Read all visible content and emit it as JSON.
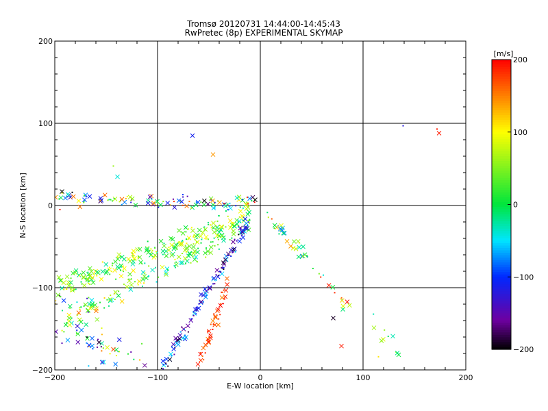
{
  "chart_data": {
    "type": "scatter",
    "title": "Tromsø 20120731 14:44:00-14:45:43",
    "subtitle": "RwPretec (8p) EXPERIMENTAL SKYMAP",
    "xlabel": "E-W location [km]",
    "ylabel": "N-S location [km]",
    "xlim": [
      -200,
      200
    ],
    "ylim": [
      -200,
      200
    ],
    "xticks": [
      "−200",
      "−100",
      "0",
      "100",
      "200"
    ],
    "yticks": [
      "200",
      "100",
      "0",
      "−100",
      "−200"
    ],
    "grid": true,
    "colorbar": {
      "label": "[m/s]",
      "range": [
        -200,
        200
      ],
      "ticks": [
        "200",
        "100",
        "0",
        "−100",
        "−200"
      ]
    },
    "clusters": [
      {
        "name": "horizontal-band-north",
        "x0": -195,
        "x1": -5,
        "y0": 8,
        "y1": 3,
        "spread": 6,
        "n": 120,
        "vmin": -200,
        "vmax": 200
      },
      {
        "name": "upper-diagonal",
        "x0": -195,
        "x1": -5,
        "y0": -100,
        "y1": -12,
        "spread": 10,
        "n": 240,
        "vmin": -30,
        "vmax": 110
      },
      {
        "name": "lower-diagonal",
        "x0": -190,
        "x1": -15,
        "y0": -140,
        "y1": -25,
        "spread": 8,
        "n": 130,
        "vmin": -50,
        "vmax": 120
      },
      {
        "name": "steep-blue-streak",
        "x0": -95,
        "x1": -12,
        "y0": -200,
        "y1": -20,
        "spread": 5,
        "n": 120,
        "vmin": -200,
        "vmax": -40
      },
      {
        "name": "steep-red-streak",
        "x0": -60,
        "x1": -30,
        "y0": -195,
        "y1": -90,
        "spread": 5,
        "n": 45,
        "vmin": 140,
        "vmax": 200
      },
      {
        "name": "eastern-trail",
        "x0": 5,
        "x1": 85,
        "y0": -10,
        "y1": -120,
        "spread": 6,
        "n": 45,
        "vmin": -80,
        "vmax": 200
      },
      {
        "name": "lower-left-scatter",
        "x0": -200,
        "x1": -120,
        "y0": -120,
        "y1": -195,
        "spread": 22,
        "n": 70,
        "vmin": -200,
        "vmax": 200
      },
      {
        "name": "far-east-lower",
        "x0": 110,
        "x1": 135,
        "y0": -140,
        "y1": -185,
        "spread": 8,
        "n": 9,
        "vmin": -40,
        "vmax": 110
      }
    ],
    "points": [
      {
        "x": -66,
        "y": 85,
        "v": -110
      },
      {
        "x": -46,
        "y": 62,
        "v": 140
      },
      {
        "x": 139,
        "y": 97,
        "v": -120
      },
      {
        "x": 172,
        "y": 93,
        "v": 190
      },
      {
        "x": 174,
        "y": 88,
        "v": 190
      },
      {
        "x": -5,
        "y": 7,
        "v": -200
      },
      {
        "x": -193,
        "y": 17,
        "v": -200
      },
      {
        "x": -183,
        "y": 16,
        "v": -200
      },
      {
        "x": -143,
        "y": 48,
        "v": 60
      },
      {
        "x": -139,
        "y": 35,
        "v": -40
      },
      {
        "x": 71,
        "y": -137,
        "v": -190
      },
      {
        "x": 79,
        "y": -171,
        "v": 190
      },
      {
        "x": 129,
        "y": -159,
        "v": -30
      },
      {
        "x": 115,
        "y": -184,
        "v": 110
      },
      {
        "x": -195,
        "y": -5,
        "v": 190
      },
      {
        "x": -143,
        "y": -175,
        "v": 170
      },
      {
        "x": -158,
        "y": -163,
        "v": -150
      }
    ]
  }
}
